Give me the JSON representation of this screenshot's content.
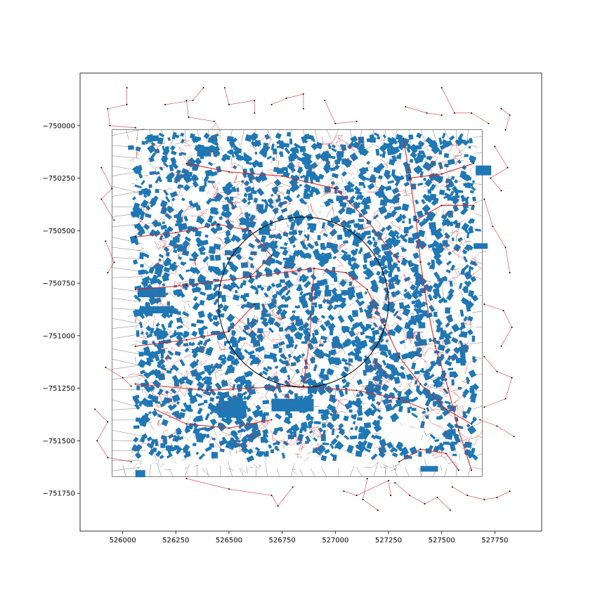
{
  "chart_data": {
    "type": "map",
    "title": "",
    "xlabel": "",
    "ylabel": "",
    "xlim": [
      525800,
      527970
    ],
    "ylim": [
      -751930,
      -749750
    ],
    "x_ticks": [
      526000,
      526250,
      526500,
      526750,
      527000,
      527250,
      527500,
      527750
    ],
    "x_tick_labels": [
      "526000",
      "526250",
      "526500",
      "526750",
      "527000",
      "527250",
      "527500",
      "527750"
    ],
    "y_ticks": [
      -750000,
      -750250,
      -750500,
      -750750,
      -751000,
      -751250,
      -751500,
      -751750
    ],
    "y_tick_labels": [
      "−750000",
      "−750250",
      "−750500",
      "−750750",
      "−751000",
      "−751250",
      "−751500",
      "−751750"
    ],
    "grid": false,
    "legend": "none",
    "layers": [
      {
        "kind": "tessellation-extent",
        "color": "#000000",
        "extent": {
          "x": [
            525950,
            527690
          ],
          "y": [
            -751670,
            -750020
          ]
        }
      },
      {
        "kind": "building-footprints",
        "color": "#1f77b4"
      },
      {
        "kind": "street-network",
        "color": "#d62728"
      },
      {
        "kind": "buffer-circle",
        "color": "#000000",
        "center": [
          526850,
          -750840
        ],
        "radius": 400
      }
    ],
    "colors": {
      "buildings": "#1f77b4",
      "streets": "#d62728",
      "cells": "#000000",
      "nodes": "#000000"
    }
  }
}
